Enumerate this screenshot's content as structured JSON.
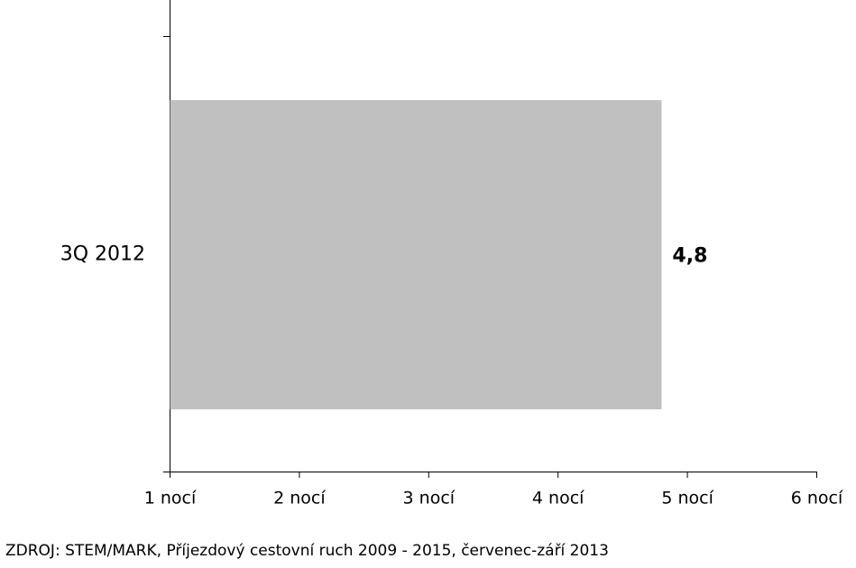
{
  "chart_data": {
    "type": "bar",
    "orientation": "horizontal",
    "categories": [
      "3Q 2012"
    ],
    "values": [
      4.8
    ],
    "value_labels": [
      "4,8"
    ],
    "color": "#c0c0c0",
    "xlim": [
      1,
      6
    ],
    "xticks": [
      {
        "value": 1,
        "label": "1 nocí"
      },
      {
        "value": 2,
        "label": "2 nocí"
      },
      {
        "value": 3,
        "label": "3 nocí"
      },
      {
        "value": 4,
        "label": "4 nocí"
      },
      {
        "value": 5,
        "label": "5 nocí"
      },
      {
        "value": 6,
        "label": "6 nocí"
      }
    ],
    "source": "ZDROJ: STEM/MARK, Příjezdový cestovní ruch 2009 - 2015, červenec-září 2013"
  }
}
